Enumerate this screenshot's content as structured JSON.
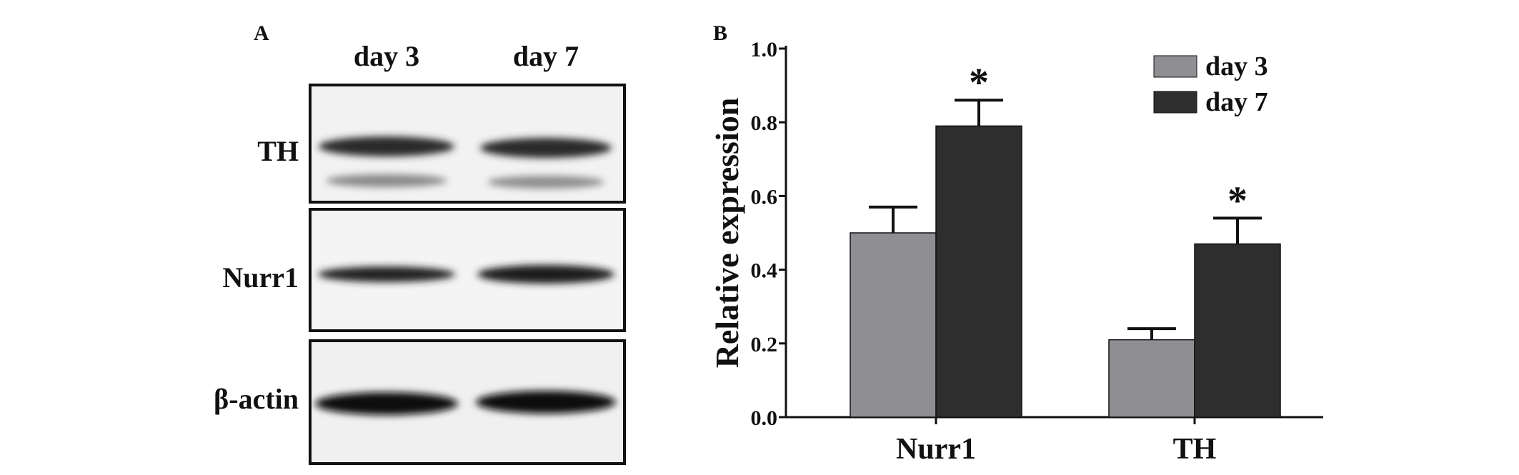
{
  "panel_a": {
    "label": "A",
    "lanes": [
      "day 3",
      "day 7"
    ],
    "blots": [
      {
        "name": "TH",
        "label": "TH"
      },
      {
        "name": "nurr1",
        "label": "Nurr1"
      },
      {
        "name": "beta-actin",
        "label": "β-actin"
      }
    ]
  },
  "panel_b": {
    "label": "B"
  },
  "chart_data": {
    "type": "bar",
    "categories": [
      "Nurr1",
      "TH"
    ],
    "series": [
      {
        "name": "day 3",
        "values": [
          0.5,
          0.21
        ],
        "errors": [
          0.07,
          0.03
        ],
        "color": "#8f8f93"
      },
      {
        "name": "day 7",
        "values": [
          0.79,
          0.47
        ],
        "errors": [
          0.07,
          0.07
        ],
        "color": "#2e2e2e"
      }
    ],
    "significance": [
      {
        "category": "Nurr1",
        "series": "day 7",
        "text": "*"
      },
      {
        "category": "TH",
        "series": "day 7",
        "text": "*"
      }
    ],
    "ylabel": "Relative expression",
    "xlabel": "",
    "ylim": [
      0,
      1.0
    ],
    "yticks": [
      "0.0",
      "0.2",
      "0.4",
      "0.6",
      "0.8",
      "1.0"
    ],
    "legend": "top-right",
    "grid": false
  }
}
